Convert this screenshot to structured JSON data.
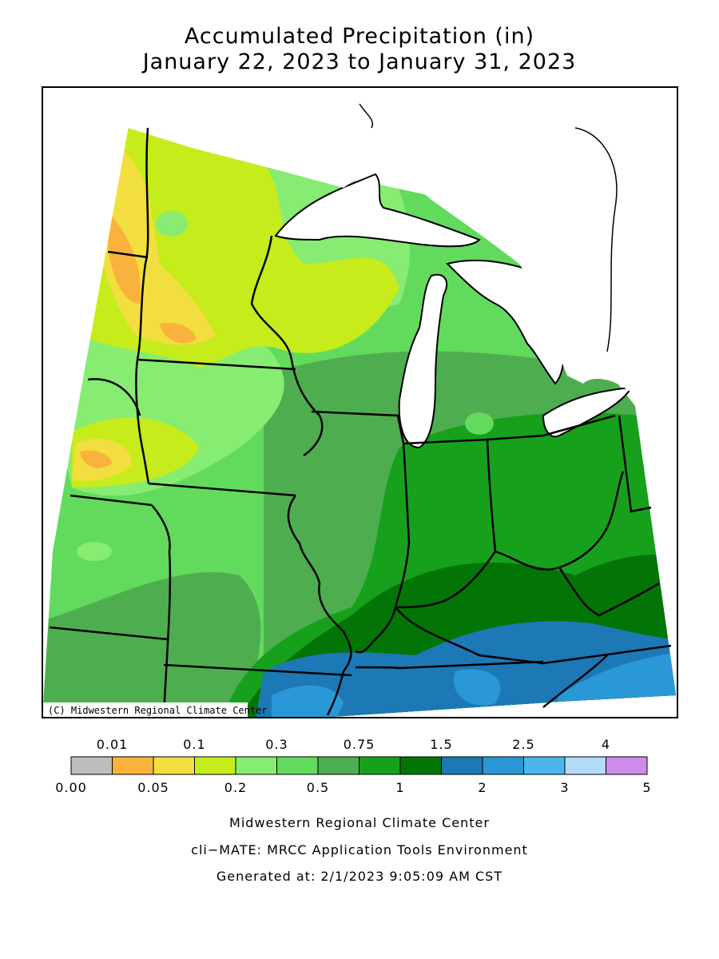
{
  "title": {
    "line1": "Accumulated Precipitation (in)",
    "line2": "January 22, 2023 to January 31, 2023"
  },
  "map": {
    "credit": "(C) Midwestern Regional Climate Center",
    "lake_color": "#ffffff",
    "border_color": "#000000"
  },
  "legend": {
    "top_labels": [
      "0.01",
      "0.1",
      "0.3",
      "0.75",
      "1.5",
      "2.5",
      "4"
    ],
    "bottom_labels": [
      "0.00",
      "0.05",
      "0.2",
      "0.5",
      "1",
      "2",
      "3",
      "5"
    ],
    "colors": [
      "#bdbdbd",
      "#f9b23c",
      "#f2de3e",
      "#c6ec1b",
      "#86ec72",
      "#62da5d",
      "#4eae4f",
      "#17a01c",
      "#037507",
      "#1d78b6",
      "#2a98d6",
      "#4cb5ec",
      "#b2dbf8",
      "#ce8bea"
    ]
  },
  "footer": {
    "line1": "Midwestern Regional Climate Center",
    "line2": "cli−MATE: MRCC Application Tools Environment",
    "line3": "Generated at: 2/1/2023 9:05:09 AM CST"
  }
}
